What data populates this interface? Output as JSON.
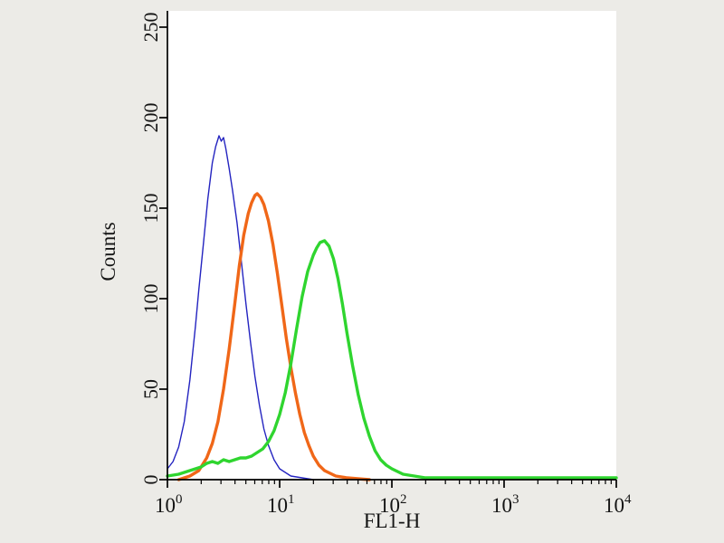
{
  "chart_data": {
    "type": "line",
    "title": "",
    "xlabel": "FL1-H",
    "ylabel": "Counts",
    "x_scale": "log10",
    "xlim_log": [
      0,
      4
    ],
    "ylim": [
      0,
      250
    ],
    "y_ticks": [
      0,
      50,
      100,
      150,
      200,
      250
    ],
    "x_decade_ticks": [
      0,
      1,
      2,
      3,
      4
    ],
    "x_tick_base": "10",
    "grid": "off",
    "legend": "none",
    "series": [
      {
        "name": "blue-thin-histogram",
        "color": "#2424c0",
        "width": 1.4,
        "peak_log_x": 0.48,
        "peak_count": 190,
        "x_log": [
          0.0,
          0.05,
          0.1,
          0.15,
          0.2,
          0.25,
          0.28,
          0.32,
          0.36,
          0.4,
          0.43,
          0.46,
          0.48,
          0.5,
          0.52,
          0.55,
          0.58,
          0.62,
          0.66,
          0.7,
          0.74,
          0.78,
          0.82,
          0.86,
          0.9,
          0.95,
          1.0,
          1.05,
          1.1,
          1.2,
          1.3
        ],
        "y": [
          6,
          10,
          18,
          32,
          55,
          85,
          105,
          130,
          155,
          175,
          184,
          190,
          187,
          189,
          183,
          172,
          160,
          142,
          120,
          97,
          76,
          57,
          41,
          28,
          19,
          11,
          6,
          4,
          2,
          1,
          0
        ]
      },
      {
        "name": "orange-thick-histogram",
        "color": "#f06718",
        "width": 3.4,
        "peak_log_x": 0.8,
        "peak_count": 158,
        "x_log": [
          0.1,
          0.2,
          0.28,
          0.35,
          0.4,
          0.45,
          0.5,
          0.55,
          0.6,
          0.64,
          0.68,
          0.72,
          0.75,
          0.78,
          0.8,
          0.83,
          0.86,
          0.9,
          0.94,
          0.98,
          1.02,
          1.06,
          1.1,
          1.14,
          1.18,
          1.22,
          1.26,
          1.3,
          1.35,
          1.4,
          1.5,
          1.6,
          1.8
        ],
        "y": [
          0,
          2,
          5,
          12,
          20,
          32,
          50,
          72,
          97,
          118,
          135,
          147,
          153,
          157,
          158,
          156,
          152,
          143,
          130,
          114,
          96,
          78,
          62,
          48,
          36,
          26,
          19,
          13,
          8,
          5,
          2,
          1,
          0
        ]
      },
      {
        "name": "green-thick-histogram",
        "color": "#2fd52f",
        "width": 3.4,
        "peak_log_x": 1.4,
        "peak_count": 132,
        "x_log": [
          0.0,
          0.1,
          0.2,
          0.3,
          0.35,
          0.4,
          0.45,
          0.5,
          0.55,
          0.6,
          0.65,
          0.7,
          0.75,
          0.8,
          0.85,
          0.9,
          0.95,
          1.0,
          1.05,
          1.1,
          1.15,
          1.2,
          1.25,
          1.3,
          1.33,
          1.36,
          1.4,
          1.44,
          1.48,
          1.52,
          1.56,
          1.6,
          1.65,
          1.7,
          1.75,
          1.8,
          1.85,
          1.9,
          1.95,
          2.0,
          2.1,
          2.2,
          2.3,
          2.5,
          3.0,
          3.5,
          4.0
        ],
        "y": [
          2,
          3,
          5,
          7,
          9,
          10,
          9,
          11,
          10,
          11,
          12,
          12,
          13,
          15,
          17,
          21,
          27,
          36,
          48,
          64,
          83,
          101,
          115,
          124,
          128,
          131,
          132,
          129,
          122,
          111,
          97,
          81,
          63,
          47,
          34,
          24,
          16,
          11,
          8,
          6,
          3,
          2,
          1,
          1,
          1,
          1,
          1
        ]
      }
    ]
  },
  "colors": {
    "background": "#ecebe7",
    "plot_background": "#ffffff",
    "axis": "#000000"
  }
}
